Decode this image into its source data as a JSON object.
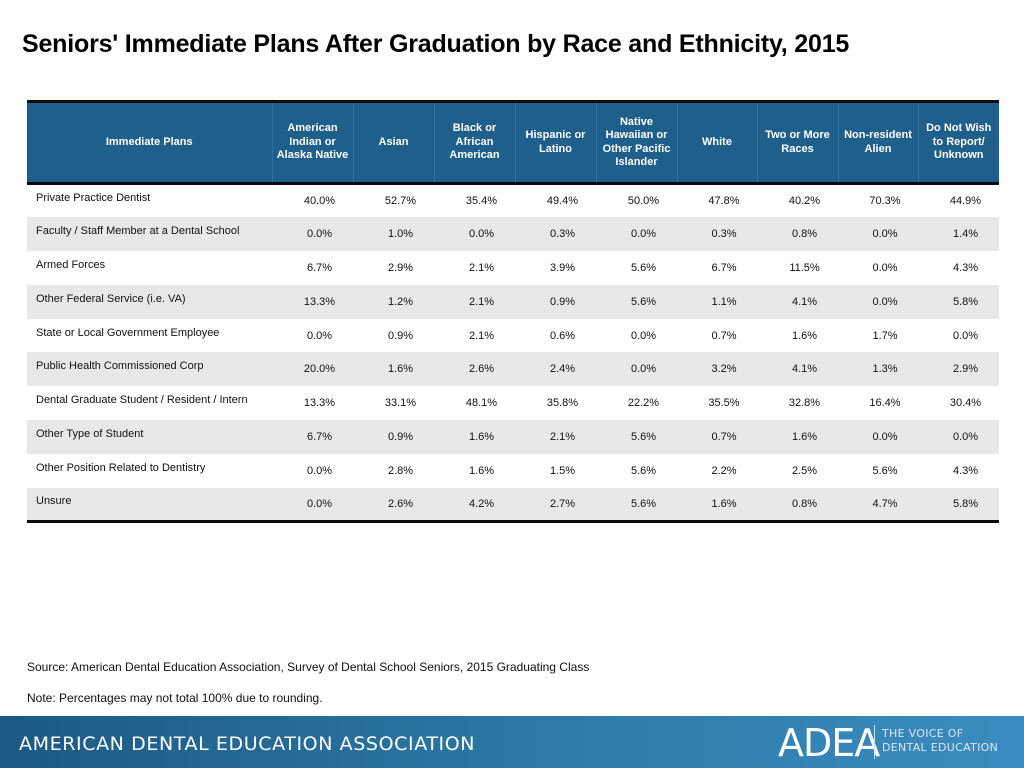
{
  "title": "Seniors' Immediate Plans After Graduation by Race and Ethnicity, 2015",
  "table": {
    "headers": [
      "Immediate Plans",
      "American Indian or Alaska Native",
      "Asian",
      "Black or African American",
      "Hispanic or Latino",
      "Native Hawaiian or Other Pacific Islander",
      "White",
      "Two or More Races",
      "Non-resident Alien",
      "Do Not Wish to Report/ Unknown"
    ],
    "rows": [
      {
        "plan": "Private Practice Dentist",
        "values": [
          "40.0%",
          "52.7%",
          "35.4%",
          "49.4%",
          "50.0%",
          "47.8%",
          "40.2%",
          "70.3%",
          "44.9%"
        ]
      },
      {
        "plan": "Faculty / Staff Member at a Dental School",
        "values": [
          "0.0%",
          "1.0%",
          "0.0%",
          "0.3%",
          "0.0%",
          "0.3%",
          "0.8%",
          "0.0%",
          "1.4%"
        ]
      },
      {
        "plan": "Armed Forces",
        "values": [
          "6.7%",
          "2.9%",
          "2.1%",
          "3.9%",
          "5.6%",
          "6.7%",
          "11.5%",
          "0.0%",
          "4.3%"
        ]
      },
      {
        "plan": "Other Federal Service (i.e. VA)",
        "values": [
          "13.3%",
          "1.2%",
          "2.1%",
          "0.9%",
          "5.6%",
          "1.1%",
          "4.1%",
          "0.0%",
          "5.8%"
        ]
      },
      {
        "plan": "State or Local Government Employee",
        "values": [
          "0.0%",
          "0.9%",
          "2.1%",
          "0.6%",
          "0.0%",
          "0.7%",
          "1.6%",
          "1.7%",
          "0.0%"
        ]
      },
      {
        "plan": "Public Health Commissioned Corp",
        "values": [
          "20.0%",
          "1.6%",
          "2.6%",
          "2.4%",
          "0.0%",
          "3.2%",
          "4.1%",
          "1.3%",
          "2.9%"
        ]
      },
      {
        "plan": "Dental Graduate Student / Resident / Intern",
        "values": [
          "13.3%",
          "33.1%",
          "48.1%",
          "35.8%",
          "22.2%",
          "35.5%",
          "32.8%",
          "16.4%",
          "30.4%"
        ]
      },
      {
        "plan": "Other Type of  Student",
        "values": [
          "6.7%",
          "0.9%",
          "1.6%",
          "2.1%",
          "5.6%",
          "0.7%",
          "1.6%",
          "0.0%",
          "0.0%"
        ]
      },
      {
        "plan": "Other Position Related to Dentistry",
        "values": [
          "0.0%",
          "2.8%",
          "1.6%",
          "1.5%",
          "5.6%",
          "2.2%",
          "2.5%",
          "5.6%",
          "4.3%"
        ]
      },
      {
        "plan": "Unsure",
        "values": [
          "0.0%",
          "2.6%",
          "4.2%",
          "2.7%",
          "5.6%",
          "1.6%",
          "0.8%",
          "4.7%",
          "5.8%"
        ]
      }
    ]
  },
  "source": "Source: American Dental Education Association, Survey of Dental School Seniors, 2015 Graduating Class",
  "note": "Note: Percentages may not total 100% due to rounding.",
  "footer": {
    "org_name": "AMERICAN DENTAL EDUCATION ASSOCIATION",
    "logo": "ADEA",
    "tagline_line1": "THE VOICE OF",
    "tagline_line2": "DENTAL EDUCATION"
  },
  "colors": {
    "header_bg": "#1f5f8b",
    "stripe": "#e8e8e8",
    "footer_bg": "#2e7aa8"
  }
}
